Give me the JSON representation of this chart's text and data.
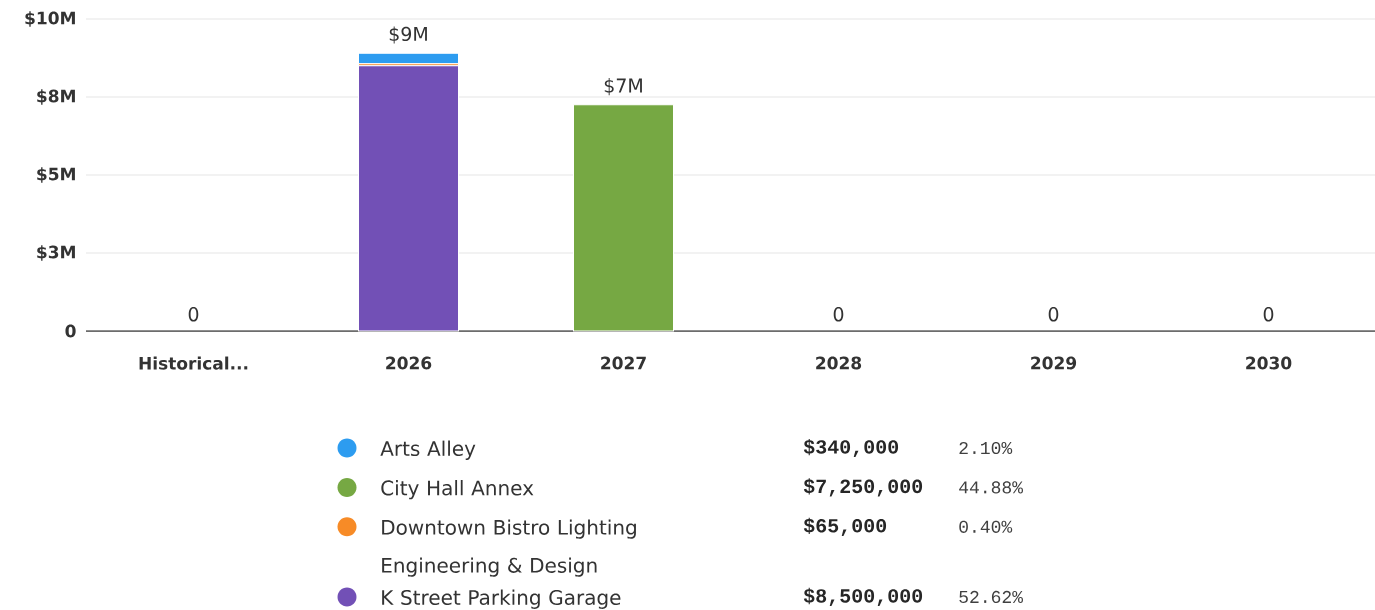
{
  "chart_data": {
    "type": "bar",
    "stacked": true,
    "categories": [
      "Historical...",
      "2026",
      "2027",
      "2028",
      "2029",
      "2030"
    ],
    "series": [
      {
        "name": "K Street Parking Garage",
        "color": "#7250b6",
        "values": [
          0,
          8500000,
          0,
          0,
          0,
          0
        ]
      },
      {
        "name": "Downtown Bistro Lighting Engineering & Design",
        "color": "#f78b27",
        "values": [
          0,
          65000,
          0,
          0,
          0,
          0
        ]
      },
      {
        "name": "City Hall Annex",
        "color": "#76a843",
        "values": [
          0,
          0,
          7250000,
          0,
          0,
          0
        ]
      },
      {
        "name": "Arts Alley",
        "color": "#2d9cf0",
        "values": [
          0,
          340000,
          0,
          0,
          0,
          0
        ]
      }
    ],
    "ylim": [
      0,
      10000000
    ],
    "yticks": [
      0,
      {
        "value": 2500000,
        "label": "$3M"
      },
      {
        "value": 5000000,
        "label": "$5M"
      },
      {
        "value": 7500000,
        "label": "$8M"
      },
      {
        "value": 10000000,
        "label": "$10M"
      }
    ],
    "grid": "y",
    "totals": [
      "0",
      "$9M",
      "$7M",
      "0",
      "0",
      "0"
    ],
    "legend": "bottom",
    "annotations": [
      "$340,000",
      "2.10%",
      "$7,250,000",
      "44.88%",
      "$65,000",
      "0.40%",
      "$8,500,000",
      "52.62%"
    ]
  }
}
